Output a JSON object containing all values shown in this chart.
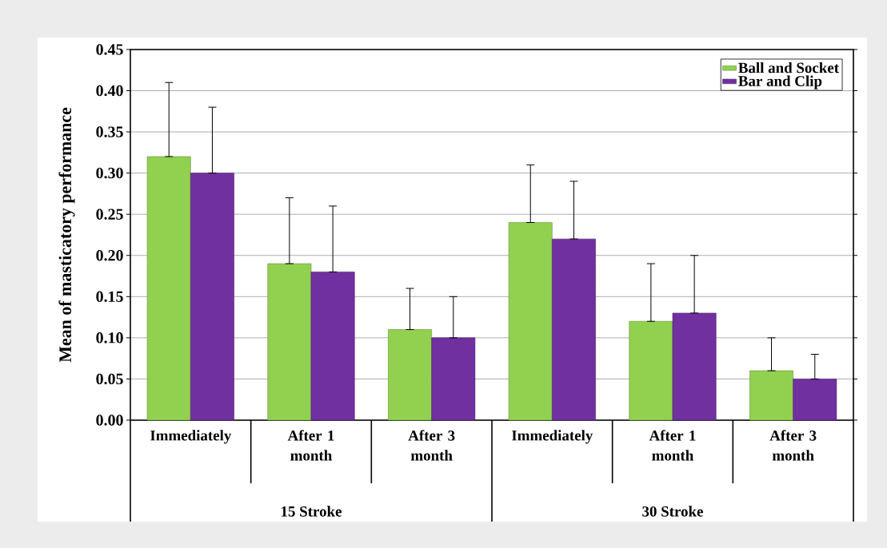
{
  "chart_data": {
    "type": "bar",
    "ylabel": "Mean of masticatory performance",
    "categories": [
      "Immediately",
      "After 1 month",
      "After 3 month",
      "Immediately",
      "After 1 month",
      "After 3 month"
    ],
    "annotations": [
      "15 Stroke",
      "30 Stroke"
    ],
    "series": [
      {
        "name": "Ball and Socket",
        "color": "#92d050",
        "values": [
          0.32,
          0.19,
          0.11,
          0.24,
          0.12,
          0.06
        ],
        "errors": [
          [
            0.32,
            0.41
          ],
          [
            0.19,
            0.27
          ],
          [
            0.11,
            0.16
          ],
          [
            0.24,
            0.31
          ],
          [
            0.12,
            0.19
          ],
          [
            0.06,
            0.1
          ]
        ]
      },
      {
        "name": "Bar and Clip",
        "color": "#7030a0",
        "values": [
          0.3,
          0.18,
          0.1,
          0.22,
          0.13,
          0.05
        ],
        "errors": [
          [
            0.3,
            0.38
          ],
          [
            0.18,
            0.26
          ],
          [
            0.1,
            0.15
          ],
          [
            0.22,
            0.29
          ],
          [
            0.13,
            0.2
          ],
          [
            0.05,
            0.08
          ]
        ]
      }
    ],
    "ylim": [
      0,
      0.45
    ],
    "yticks": [
      {
        "value": 0,
        "label": "0.00"
      },
      {
        "value": 0.05,
        "label": "0.05"
      },
      {
        "value": 0.1,
        "label": "0.10"
      },
      {
        "value": 0.15,
        "label": "0.15"
      },
      {
        "value": 0.2,
        "label": "0.20"
      },
      {
        "value": 0.25,
        "label": "0.25"
      },
      {
        "value": 0.3,
        "label": "0.30"
      },
      {
        "value": 0.35,
        "label": "0.35"
      },
      {
        "value": 0.4,
        "label": "0.40"
      },
      {
        "value": 0.45,
        "label": "0.45"
      }
    ],
    "grid": "y",
    "legend": "top right"
  }
}
